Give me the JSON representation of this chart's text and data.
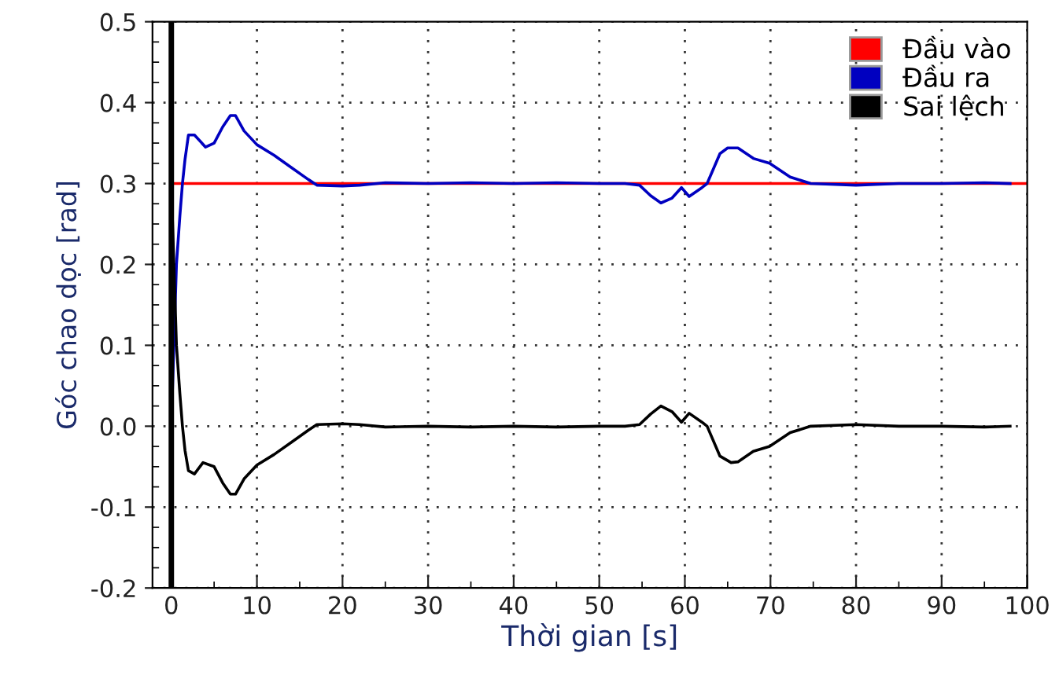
{
  "chart_data": {
    "type": "line",
    "xlabel": "Thời gian [s]",
    "ylabel": "Góc chao dọc [rad]",
    "xlim": [
      -2.2,
      100
    ],
    "xticks": [
      0,
      10,
      20,
      30,
      40,
      50,
      60,
      70,
      80,
      90,
      100
    ],
    "ylim": [
      -0.2,
      0.5
    ],
    "yticks": [
      {
        "value": -0.2,
        "label": "-0.2"
      },
      {
        "value": -0.1,
        "label": "-0.1"
      },
      {
        "value": 0,
        "label": "0.0"
      },
      {
        "value": 0.1,
        "label": "0.1"
      },
      {
        "value": 0.2,
        "label": "0.2"
      },
      {
        "value": 0.3,
        "label": "0.3"
      },
      {
        "value": 0.4,
        "label": "0.4"
      },
      {
        "value": 0.5,
        "label": "0.5"
      }
    ],
    "grid": true,
    "legend": "top right",
    "line_style": "solid",
    "ref_lines": [
      {
        "axis": "x",
        "value": 0,
        "color": "#000000"
      }
    ],
    "series": [
      {
        "name": "Đầu vào",
        "color": "#ff0000",
        "x": [
          0,
          100
        ],
        "values": [
          0.3,
          0.3
        ]
      },
      {
        "name": "Đầu ra",
        "color": "#0000c0",
        "x": [
          0,
          0.3,
          0.6,
          1.0,
          1.3,
          1.6,
          2.0,
          2.7,
          4.0,
          5.0,
          6.0,
          6.9,
          7.5,
          8.5,
          10,
          12,
          14,
          16,
          17,
          20,
          22,
          25,
          30,
          35,
          40,
          45,
          50,
          53,
          54.7,
          56,
          57.2,
          58.5,
          59.6,
          60.5,
          62,
          62.6,
          64.1,
          65,
          66.2,
          68,
          69.9,
          72.3,
          74.7,
          80,
          85,
          90,
          95,
          98
        ],
        "values": [
          0,
          0.1,
          0.2,
          0.26,
          0.3,
          0.33,
          0.36,
          0.36,
          0.345,
          0.35,
          0.37,
          0.384,
          0.384,
          0.365,
          0.348,
          0.335,
          0.32,
          0.305,
          0.298,
          0.297,
          0.298,
          0.301,
          0.3,
          0.301,
          0.3,
          0.301,
          0.3,
          0.3,
          0.298,
          0.285,
          0.276,
          0.282,
          0.295,
          0.284,
          0.295,
          0.3,
          0.337,
          0.344,
          0.344,
          0.331,
          0.325,
          0.308,
          0.3,
          0.298,
          0.3,
          0.3,
          0.301,
          0.3
        ]
      },
      {
        "name": "Sai lệch",
        "color": "#000000",
        "x": [
          0,
          0.3,
          0.6,
          1.0,
          1.3,
          1.6,
          2.0,
          2.7,
          3.7,
          5.0,
          6.0,
          6.9,
          7.5,
          8.5,
          10,
          12,
          14,
          16,
          17,
          20,
          22,
          25,
          30,
          35,
          40,
          45,
          50,
          53,
          54.7,
          56,
          57.2,
          58.5,
          59.6,
          60.5,
          62,
          62.6,
          64.1,
          65.4,
          66.2,
          68,
          69.9,
          72.3,
          74.7,
          80,
          85,
          90,
          95,
          98
        ],
        "values": [
          0.3,
          0.2,
          0.1,
          0.04,
          0,
          -0.03,
          -0.055,
          -0.059,
          -0.045,
          -0.05,
          -0.07,
          -0.084,
          -0.084,
          -0.065,
          -0.048,
          -0.035,
          -0.02,
          -0.005,
          0.002,
          0.003,
          0.002,
          -0.001,
          0,
          -0.001,
          0,
          -0.001,
          0,
          0,
          0.002,
          0.015,
          0.025,
          0.018,
          0.005,
          0.016,
          0.005,
          0,
          -0.037,
          -0.045,
          -0.044,
          -0.031,
          -0.025,
          -0.008,
          0,
          0.002,
          0,
          0,
          -0.001,
          0
        ]
      }
    ]
  }
}
